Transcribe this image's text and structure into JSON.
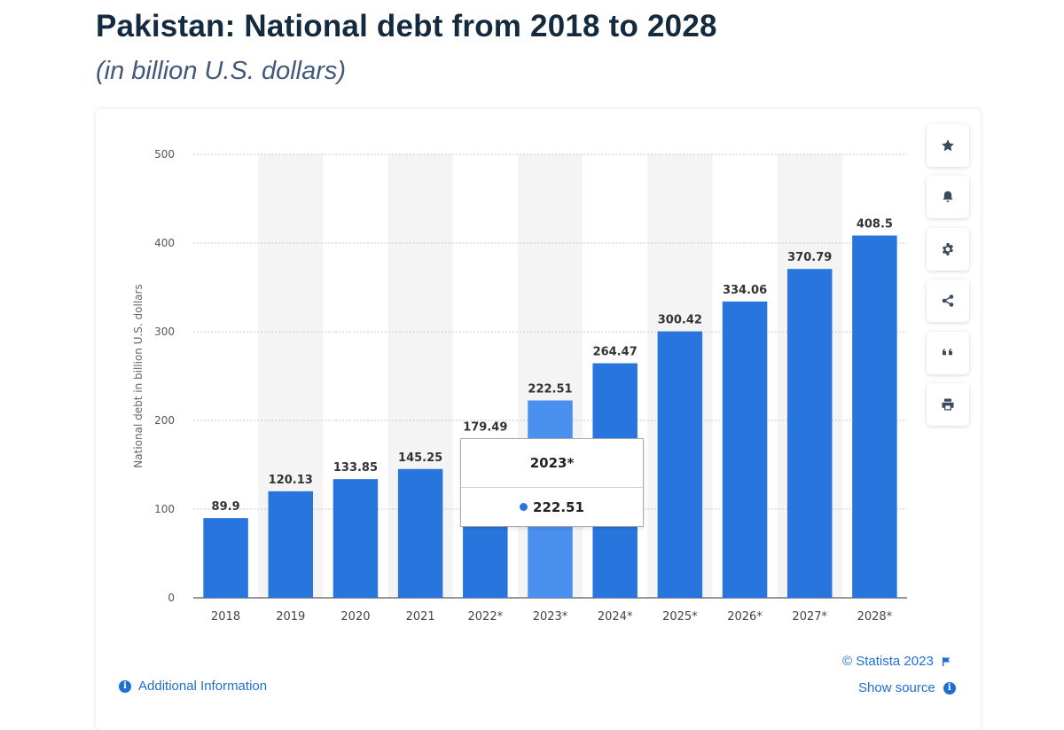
{
  "title": "Pakistan: National debt from 2018 to 2028",
  "subtitle": "(in billion U.S. dollars)",
  "actions": [
    {
      "name": "favorite",
      "icon": "star-icon"
    },
    {
      "name": "alert",
      "icon": "bell-icon"
    },
    {
      "name": "settings",
      "icon": "gear-icon"
    },
    {
      "name": "share",
      "icon": "share-icon"
    },
    {
      "name": "cite",
      "icon": "quote-icon"
    },
    {
      "name": "print",
      "icon": "print-icon"
    }
  ],
  "tooltip": {
    "category": "2023*",
    "value": "222.51"
  },
  "footer": {
    "copyright": "© Statista 2023",
    "additional_info": "Additional Information",
    "show_source": "Show source"
  },
  "colors": {
    "bar": "#2876dd",
    "bar_highlight": "#4a90ee",
    "stripe": "#f4f4f4",
    "grid": "#c9c9c9"
  },
  "chart_data": {
    "type": "bar",
    "title": "Pakistan: National debt from 2018 to 2028",
    "xlabel": "",
    "ylabel": "National debt in billion U.S. dollars",
    "ylim": [
      0,
      500
    ],
    "yticks": [
      0,
      100,
      200,
      300,
      400,
      500
    ],
    "grid": true,
    "highlighted": "2023*",
    "categories": [
      "2018",
      "2019",
      "2020",
      "2021",
      "2022*",
      "2023*",
      "2024*",
      "2025*",
      "2026*",
      "2027*",
      "2028*"
    ],
    "values": [
      89.9,
      120.13,
      133.85,
      145.25,
      179.49,
      222.51,
      264.47,
      300.42,
      334.06,
      370.79,
      408.5
    ],
    "labels": [
      "89.9",
      "120.13",
      "133.85",
      "145.25",
      "179.49",
      "222.51",
      "264.47",
      "300.42",
      "334.06",
      "370.79",
      "408.5"
    ]
  }
}
